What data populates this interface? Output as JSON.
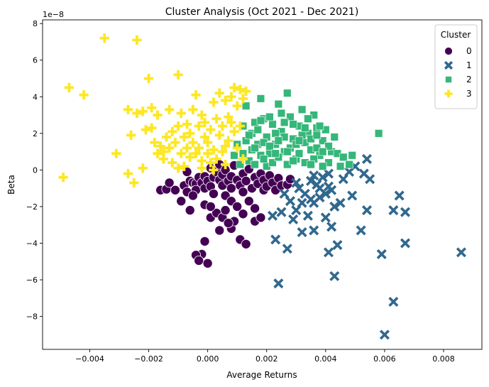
{
  "chart_data": {
    "type": "scatter",
    "title": "Cluster Analysis (Oct 2021 - Dec 2021)",
    "xlabel": "Average Returns",
    "ylabel": "Beta",
    "y_scale_label": "1e−8",
    "xlim": [
      -0.0056,
      0.0093
    ],
    "ylim": [
      -9.8,
      8.2
    ],
    "x_ticks": [
      -0.004,
      -0.002,
      0.0,
      0.002,
      0.004,
      0.006,
      0.008
    ],
    "x_tick_labels": [
      "−0.004",
      "−0.002",
      "0.000",
      "0.002",
      "0.004",
      "0.006",
      "0.008"
    ],
    "y_ticks": [
      -8,
      -6,
      -4,
      -2,
      0,
      2,
      4,
      6,
      8
    ],
    "y_tick_labels": [
      "−8",
      "−6",
      "−4",
      "−2",
      "0",
      "2",
      "4",
      "6",
      "8"
    ],
    "grid": false,
    "legend": {
      "title": "Cluster",
      "placement": "top-right"
    },
    "series": [
      {
        "name": "0",
        "marker": "circle",
        "color": "#440154",
        "points": [
          [
            -0.0016,
            -1.1
          ],
          [
            -0.0014,
            -1.05
          ],
          [
            -0.0013,
            -0.7
          ],
          [
            -0.0011,
            -1.1
          ],
          [
            -0.0009,
            -1.7
          ],
          [
            -0.0008,
            -0.85
          ],
          [
            -0.0007,
            -1.2
          ],
          [
            -0.0007,
            -0.1
          ],
          [
            -0.0006,
            -0.6
          ],
          [
            -0.0005,
            -0.7
          ],
          [
            -0.0004,
            -0.75
          ],
          [
            -0.0004,
            -1.1
          ],
          [
            -0.0003,
            -0.4
          ],
          [
            -0.0002,
            -0.7
          ],
          [
            -0.0001,
            -1.0
          ],
          [
            -0.0001,
            -0.35
          ],
          [
            0.0,
            -0.6
          ],
          [
            0.0001,
            0.1
          ],
          [
            0.0001,
            -0.9
          ],
          [
            0.0002,
            -1.3
          ],
          [
            0.0002,
            -0.4
          ],
          [
            0.0003,
            -0.1
          ],
          [
            0.0004,
            -0.55
          ],
          [
            0.0004,
            0.3
          ],
          [
            0.0005,
            -0.85
          ],
          [
            0.0005,
            -0.25
          ],
          [
            0.0006,
            0.0
          ],
          [
            0.0006,
            -1.4
          ],
          [
            0.0007,
            -0.6
          ],
          [
            0.0008,
            -0.35
          ],
          [
            0.0008,
            -1.0
          ],
          [
            0.0009,
            0.25
          ],
          [
            0.001,
            -0.55
          ],
          [
            0.0011,
            -0.85
          ],
          [
            0.0012,
            -0.2
          ],
          [
            0.0012,
            -1.2
          ],
          [
            0.0013,
            -0.6
          ],
          [
            0.0014,
            0.05
          ],
          [
            0.0015,
            -1.0
          ],
          [
            0.0016,
            -0.4
          ],
          [
            0.0017,
            -0.75
          ],
          [
            0.0018,
            -0.2
          ],
          [
            0.0019,
            -1.1
          ],
          [
            0.0019,
            -0.55
          ],
          [
            0.002,
            -0.9
          ],
          [
            0.0021,
            -0.3
          ],
          [
            0.0022,
            -0.7
          ],
          [
            0.0023,
            -1.1
          ],
          [
            0.0024,
            -0.45
          ],
          [
            0.0025,
            -0.85
          ],
          [
            0.0027,
            -0.8
          ],
          [
            0.0028,
            -0.5
          ],
          [
            -0.0001,
            -1.9
          ],
          [
            0.0001,
            -2.6
          ],
          [
            0.0003,
            -2.35
          ],
          [
            0.0004,
            -3.3
          ],
          [
            0.0005,
            -2.6
          ],
          [
            0.0006,
            -2.2
          ],
          [
            0.0008,
            -3.2
          ],
          [
            0.0009,
            -2.8
          ],
          [
            0.0012,
            -2.4
          ],
          [
            0.0014,
            -1.7
          ],
          [
            0.0016,
            -2.1
          ],
          [
            0.0016,
            -2.8
          ],
          [
            0.0018,
            -2.6
          ],
          [
            0.0008,
            -1.7
          ],
          [
            0.0001,
            -2.0
          ],
          [
            -0.0005,
            -1.4
          ],
          [
            -0.0006,
            -2.2
          ],
          [
            0.0007,
            -2.9
          ],
          [
            0.001,
            -2.0
          ],
          [
            0.0011,
            -3.8
          ],
          [
            0.0013,
            -4.05
          ],
          [
            -0.0001,
            -3.9
          ],
          [
            -0.0002,
            -4.6
          ],
          [
            -0.0004,
            -4.65
          ],
          [
            -0.0003,
            -4.95
          ],
          [
            0.0,
            -5.1
          ]
        ]
      },
      {
        "name": "1",
        "marker": "x",
        "color": "#31688e",
        "points": [
          [
            0.0022,
            -2.5
          ],
          [
            0.0023,
            -3.8
          ],
          [
            0.0024,
            -6.2
          ],
          [
            0.0025,
            -2.3
          ],
          [
            0.0027,
            -4.3
          ],
          [
            0.0028,
            -1.7
          ],
          [
            0.0029,
            -2.7
          ],
          [
            0.003,
            -2.2
          ],
          [
            0.0031,
            -1.0
          ],
          [
            0.0032,
            -1.8
          ],
          [
            0.0032,
            -3.4
          ],
          [
            0.0033,
            -1.3
          ],
          [
            0.0034,
            -2.5
          ],
          [
            0.0035,
            -1.6
          ],
          [
            0.0035,
            -0.6
          ],
          [
            0.0036,
            -1.8
          ],
          [
            0.0036,
            -3.3
          ],
          [
            0.0037,
            -0.8
          ],
          [
            0.0038,
            -1.5
          ],
          [
            0.0039,
            -0.4
          ],
          [
            0.004,
            -1.3
          ],
          [
            0.004,
            -2.6
          ],
          [
            0.0041,
            -4.5
          ],
          [
            0.0041,
            -0.9
          ],
          [
            0.0042,
            -3.1
          ],
          [
            0.0042,
            -1.1
          ],
          [
            0.0043,
            -5.8
          ],
          [
            0.0043,
            -2.0
          ],
          [
            0.0044,
            -4.1
          ],
          [
            0.0045,
            -1.8
          ],
          [
            0.0046,
            -0.5
          ],
          [
            0.0048,
            -0.1
          ],
          [
            0.0049,
            -1.4
          ],
          [
            0.005,
            0.2
          ],
          [
            0.0052,
            -3.3
          ],
          [
            0.0053,
            -0.2
          ],
          [
            0.0054,
            0.6
          ],
          [
            0.0054,
            -2.2
          ],
          [
            0.0055,
            -0.5
          ],
          [
            0.0059,
            -4.6
          ],
          [
            0.006,
            -9.0
          ],
          [
            0.0063,
            -2.2
          ],
          [
            0.0063,
            -7.2
          ],
          [
            0.0065,
            -1.4
          ],
          [
            0.0067,
            -2.3
          ],
          [
            0.0067,
            -4.0
          ],
          [
            0.0086,
            -4.5
          ],
          [
            0.0036,
            -0.3
          ],
          [
            0.0038,
            -1.0
          ],
          [
            0.0041,
            -0.2
          ],
          [
            0.0026,
            -1.3
          ],
          [
            0.003,
            -0.7
          ]
        ]
      },
      {
        "name": "2",
        "marker": "square",
        "color": "#35b779",
        "points": [
          [
            0.0013,
            3.5
          ],
          [
            0.0015,
            2.0
          ],
          [
            0.0016,
            2.6
          ],
          [
            0.0017,
            1.4
          ],
          [
            0.0018,
            3.9
          ],
          [
            0.0019,
            2.8
          ],
          [
            0.002,
            1.8
          ],
          [
            0.0021,
            0.9
          ],
          [
            0.0022,
            2.5
          ],
          [
            0.0023,
            1.4
          ],
          [
            0.0024,
            3.6
          ],
          [
            0.0025,
            2.1
          ],
          [
            0.0026,
            1.0
          ],
          [
            0.0027,
            4.2
          ],
          [
            0.0028,
            2.9
          ],
          [
            0.0029,
            1.7
          ],
          [
            0.003,
            0.6
          ],
          [
            0.0031,
            2.4
          ],
          [
            0.0032,
            3.3
          ],
          [
            0.0033,
            1.5
          ],
          [
            0.0034,
            2.0
          ],
          [
            0.0035,
            1.1
          ],
          [
            0.0036,
            3.0
          ],
          [
            0.0037,
            2.3
          ],
          [
            0.0038,
            0.8
          ],
          [
            0.0039,
            1.6
          ],
          [
            0.004,
            2.2
          ],
          [
            0.0041,
            0.4
          ],
          [
            0.0042,
            1.0
          ],
          [
            0.0043,
            1.8
          ],
          [
            0.0044,
            0.9
          ],
          [
            0.0045,
            0.2
          ],
          [
            0.0046,
            0.7
          ],
          [
            0.0048,
            0.3
          ],
          [
            0.0049,
            0.8
          ],
          [
            0.0058,
            2.0
          ],
          [
            0.0012,
            0.9
          ],
          [
            0.0013,
            1.6
          ],
          [
            0.0014,
            0.5
          ],
          [
            0.0015,
            1.1
          ],
          [
            0.0016,
            0.3
          ],
          [
            0.0017,
            2.2
          ],
          [
            0.0018,
            0.8
          ],
          [
            0.0019,
            1.5
          ],
          [
            0.002,
            0.2
          ],
          [
            0.0021,
            2.9
          ],
          [
            0.0022,
            0.4
          ],
          [
            0.0023,
            2.0
          ],
          [
            0.0024,
            0.7
          ],
          [
            0.0025,
            3.1
          ],
          [
            0.0026,
            1.8
          ],
          [
            0.0027,
            0.3
          ],
          [
            0.0028,
            1.2
          ],
          [
            0.0029,
            2.5
          ],
          [
            0.003,
            1.4
          ],
          [
            0.0031,
            0.9
          ],
          [
            0.0032,
            1.9
          ],
          [
            0.0033,
            0.4
          ],
          [
            0.0034,
            2.8
          ],
          [
            0.0035,
            1.7
          ],
          [
            0.0036,
            0.6
          ],
          [
            0.0037,
            1.2
          ],
          [
            0.0038,
            2.4
          ],
          [
            0.0039,
            0.2
          ],
          [
            0.0041,
            1.3
          ],
          [
            0.0009,
            0.8
          ],
          [
            0.001,
            1.4
          ],
          [
            0.0011,
            0.3
          ],
          [
            0.0012,
            2.4
          ],
          [
            0.0014,
            1.9
          ],
          [
            0.0016,
            1.2
          ],
          [
            0.0018,
            2.7
          ],
          [
            0.0019,
            0.6
          ],
          [
            0.0021,
            1.3
          ],
          [
            0.0023,
            0.9
          ],
          [
            0.0024,
            1.6
          ],
          [
            0.0026,
            2.6
          ],
          [
            0.0027,
            1.0
          ],
          [
            0.0029,
            0.5
          ],
          [
            0.0031,
            1.6
          ],
          [
            0.0033,
            2.3
          ],
          [
            0.0035,
            0.3
          ],
          [
            0.0037,
            1.9
          ],
          [
            0.0039,
            1.0
          ]
        ]
      },
      {
        "name": "3",
        "marker": "plus",
        "color": "#fde725",
        "points": [
          [
            -0.0049,
            -0.4
          ],
          [
            -0.0047,
            4.5
          ],
          [
            -0.0042,
            4.1
          ],
          [
            -0.0035,
            7.2
          ],
          [
            -0.0031,
            0.9
          ],
          [
            -0.0027,
            3.3
          ],
          [
            -0.0026,
            1.9
          ],
          [
            -0.0027,
            -0.2
          ],
          [
            -0.0025,
            -0.7
          ],
          [
            -0.0024,
            7.1
          ],
          [
            -0.0024,
            3.1
          ],
          [
            -0.0022,
            3.2
          ],
          [
            -0.0022,
            0.1
          ],
          [
            -0.002,
            5.0
          ],
          [
            -0.0019,
            3.4
          ],
          [
            -0.0019,
            2.3
          ],
          [
            -0.0018,
            1.5
          ],
          [
            -0.0017,
            3.0
          ],
          [
            -0.0017,
            0.9
          ],
          [
            -0.0016,
            1.3
          ],
          [
            -0.0015,
            0.6
          ],
          [
            -0.0014,
            1.8
          ],
          [
            -0.0013,
            3.3
          ],
          [
            -0.0013,
            1.2
          ],
          [
            -0.0012,
            2.1
          ],
          [
            -0.0012,
            0.4
          ],
          [
            -0.0011,
            1.5
          ],
          [
            -0.001,
            5.2
          ],
          [
            -0.001,
            2.4
          ],
          [
            -0.0009,
            3.1
          ],
          [
            -0.0009,
            0.9
          ],
          [
            -0.0008,
            1.8
          ],
          [
            -0.0008,
            0.2
          ],
          [
            -0.0007,
            2.5
          ],
          [
            -0.0007,
            1.2
          ],
          [
            -0.0006,
            0.7
          ],
          [
            -0.0005,
            3.3
          ],
          [
            -0.0005,
            1.5
          ],
          [
            -0.0004,
            4.1
          ],
          [
            -0.0004,
            0.9
          ],
          [
            -0.0003,
            2.4
          ],
          [
            -0.0003,
            1.2
          ],
          [
            -0.0002,
            3.0
          ],
          [
            -0.0002,
            0.5
          ],
          [
            -0.0001,
            1.8
          ],
          [
            -0.0001,
            2.6
          ],
          [
            0.0,
            0.9
          ],
          [
            0.0,
            1.5
          ],
          [
            0.0001,
            2.2
          ],
          [
            0.0001,
            0.4
          ],
          [
            0.0002,
            3.7
          ],
          [
            0.0002,
            1.1
          ],
          [
            0.0003,
            2.8
          ],
          [
            0.0003,
            0.6
          ],
          [
            0.0004,
            1.9
          ],
          [
            0.0004,
            4.2
          ],
          [
            0.0005,
            2.4
          ],
          [
            0.0005,
            1.0
          ],
          [
            0.0006,
            3.8
          ],
          [
            0.0006,
            0.3
          ],
          [
            0.0007,
            2.9
          ],
          [
            0.0007,
            1.6
          ],
          [
            0.0008,
            4.0
          ],
          [
            0.0009,
            4.5
          ],
          [
            0.0009,
            2.1
          ],
          [
            0.001,
            1.2
          ],
          [
            0.001,
            3.5
          ],
          [
            0.0011,
            4.4
          ],
          [
            0.0011,
            2.4
          ],
          [
            0.0012,
            3.9
          ],
          [
            0.0013,
            4.3
          ],
          [
            0.0012,
            0.6
          ],
          [
            -0.0021,
            2.2
          ],
          [
            -0.0015,
            1.0
          ],
          [
            -0.001,
            0.1
          ],
          [
            -0.0006,
            2.0
          ],
          [
            -0.0002,
            0.1
          ],
          [
            0.0002,
            0.0
          ],
          [
            0.0006,
            1.3
          ],
          [
            0.0008,
            2.6
          ]
        ]
      }
    ]
  }
}
